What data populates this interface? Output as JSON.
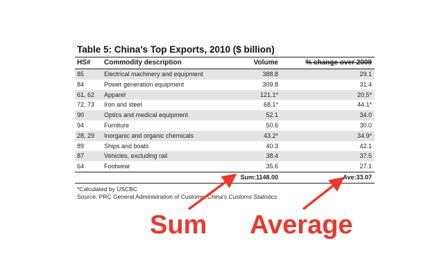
{
  "table": {
    "title": "Table 5: China's Top Exports, 2010 ($ billion)",
    "headers": {
      "hs": "HS#",
      "desc": "Commodity description",
      "volume": "Volume",
      "pct": "% change over 2009"
    },
    "rows": [
      {
        "hs": "85",
        "desc": "Electrical machinery and equipment",
        "volume": "388.8",
        "pct": "29.1",
        "shaded": true
      },
      {
        "hs": "84",
        "desc": "Power generation equipment",
        "volume": "309.8",
        "pct": "31.4",
        "shaded": false
      },
      {
        "hs": "61, 62",
        "desc": "Apparel",
        "volume": "121.1*",
        "pct": "20.5*",
        "shaded": true
      },
      {
        "hs": "72, 73",
        "desc": "Iron and steel",
        "volume": "68.1*",
        "pct": "44.1*",
        "shaded": false
      },
      {
        "hs": "90",
        "desc": "Optics and medical equipment",
        "volume": "52.1",
        "pct": "34.0",
        "shaded": true
      },
      {
        "hs": "94",
        "desc": "Furniture",
        "volume": "50.6",
        "pct": "30.0",
        "shaded": false
      },
      {
        "hs": "28, 29",
        "desc": "Inorganic and organic chemicals",
        "volume": "43.2*",
        "pct": "34.9*",
        "shaded": true
      },
      {
        "hs": "89",
        "desc": "Ships and boats",
        "volume": "40.3",
        "pct": "42.1",
        "shaded": false
      },
      {
        "hs": "87",
        "desc": "Vehicles, excluding rail",
        "volume": "38.4",
        "pct": "37.5",
        "shaded": true
      },
      {
        "hs": "64",
        "desc": "Footwear",
        "volume": "35.6",
        "pct": "27.1",
        "shaded": false
      }
    ],
    "sum_label": "Sum:1148.00",
    "avg_label": "Ave:33.07",
    "footnote": "*Calculated by USCBC",
    "source_prefix": "Source: PRC General Administration of Customs, ",
    "source_title": "China's Customs Statistics"
  },
  "annotations": {
    "sum_word": "Sum",
    "avg_word": "Average",
    "color": "#e8392d"
  }
}
